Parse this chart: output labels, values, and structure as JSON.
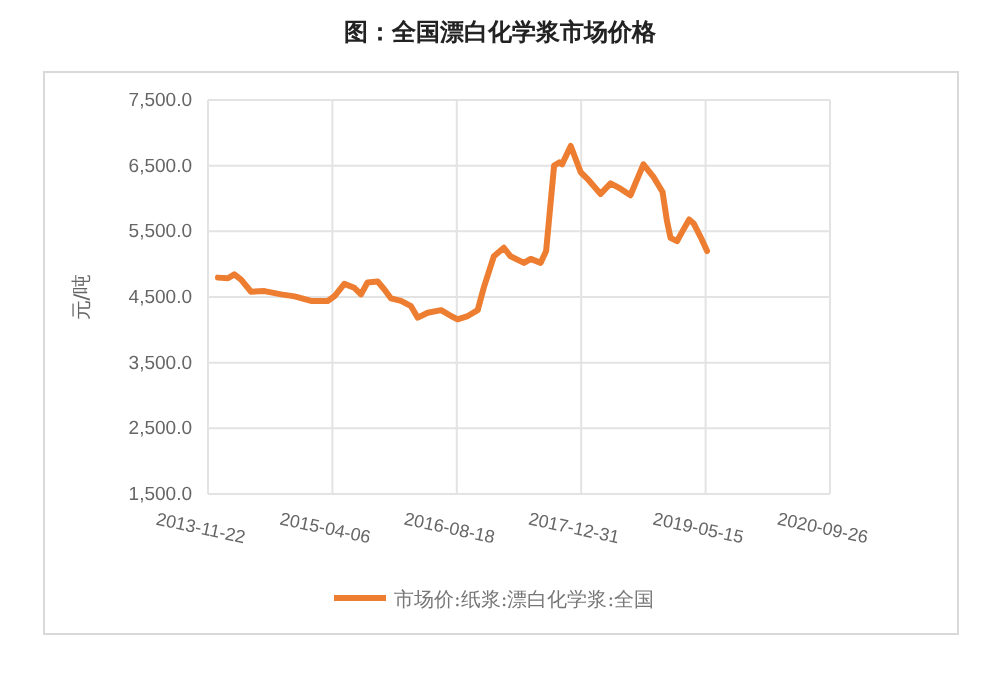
{
  "chart_data": {
    "type": "line",
    "title": "图：全国漂白化学浆市场价格",
    "ylabel": "元/吨",
    "xlim": [
      "2013-11-22",
      "2020-09-26"
    ],
    "xticks": [
      "2013-11-22",
      "2015-04-06",
      "2016-08-18",
      "2017-12-31",
      "2019-05-15",
      "2020-09-26"
    ],
    "ylim": [
      1500,
      7500
    ],
    "yticks": [
      {
        "value": 1500,
        "label": "1,500.0"
      },
      {
        "value": 2500,
        "label": "2,500.0"
      },
      {
        "value": 3500,
        "label": "3,500.0"
      },
      {
        "value": 4500,
        "label": "4,500.0"
      },
      {
        "value": 5500,
        "label": "5,500.0"
      },
      {
        "value": 6500,
        "label": "6,500.0"
      },
      {
        "value": 7500,
        "label": "7,500.0"
      }
    ],
    "grid": true,
    "legend": "bottom",
    "marker": "none",
    "line_style": "solid",
    "series": [
      {
        "name": "市场价:纸浆:漂白化学浆:全国",
        "color": "#ed7d31",
        "x": [
          "2014-01-01",
          "2014-02-10",
          "2014-03-08",
          "2014-04-04",
          "2014-05-14",
          "2014-07-07",
          "2014-09-12",
          "2014-11-05",
          "2015-01-10",
          "2015-03-18",
          "2015-04-14",
          "2015-05-24",
          "2015-07-03",
          "2015-07-30",
          "2015-08-25",
          "2015-10-05",
          "2015-11-01",
          "2015-11-27",
          "2016-01-07",
          "2016-02-16",
          "2016-03-14",
          "2016-04-23",
          "2016-06-16",
          "2016-07-26",
          "2016-08-21",
          "2016-10-01",
          "2016-11-10",
          "2016-12-05",
          "2017-01-14",
          "2017-02-23",
          "2017-03-22",
          "2017-05-15",
          "2017-06-11",
          "2017-07-21",
          "2017-08-12",
          "2017-09-13",
          "2017-10-05",
          "2017-10-15",
          "2017-11-19",
          "2017-12-29",
          "2018-01-25",
          "2018-03-19",
          "2018-04-28",
          "2018-06-07",
          "2018-07-17",
          "2018-09-07",
          "2018-10-19",
          "2018-11-23",
          "2018-12-11",
          "2018-12-25",
          "2019-01-20",
          "2019-02-08",
          "2019-03-10",
          "2019-03-28",
          "2019-04-24",
          "2019-05-21"
        ],
        "values": [
          4795,
          4785,
          4845,
          4765,
          4580,
          4590,
          4540,
          4510,
          4440,
          4440,
          4510,
          4700,
          4640,
          4540,
          4720,
          4735,
          4615,
          4480,
          4440,
          4360,
          4185,
          4260,
          4300,
          4210,
          4160,
          4210,
          4300,
          4650,
          5120,
          5250,
          5120,
          5020,
          5080,
          5020,
          5200,
          6500,
          6550,
          6520,
          6800,
          6400,
          6300,
          6070,
          6230,
          6150,
          6050,
          6520,
          6320,
          6100,
          5650,
          5400,
          5350,
          5480,
          5680,
          5620,
          5420,
          5200
        ]
      }
    ]
  }
}
